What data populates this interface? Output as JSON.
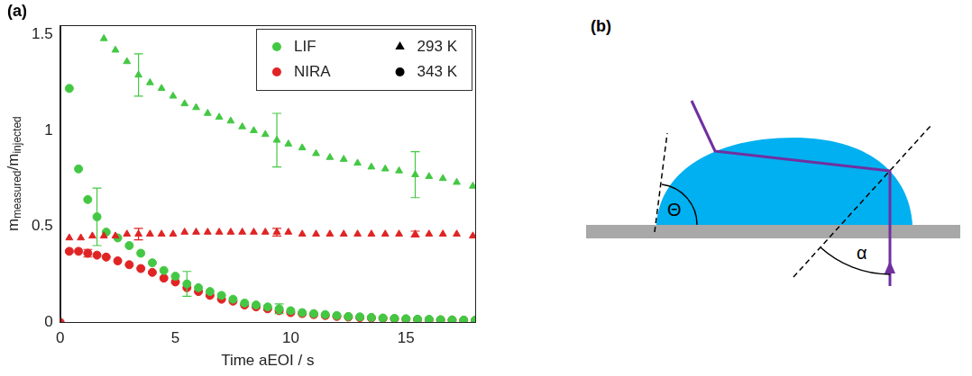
{
  "chart_data": {
    "type": "scatter",
    "panel": "(a)",
    "xlabel": "Time aEOI / s",
    "ylabel": [
      "m",
      "measured",
      "/m",
      "injected"
    ],
    "xlim": [
      0,
      18
    ],
    "xticks": [
      0,
      5,
      10,
      15
    ],
    "ylim": [
      0,
      1.55
    ],
    "yticks": [
      0,
      0.5,
      1,
      1.5
    ],
    "grid": false,
    "legend": "upper right",
    "series": [
      {
        "method": "LIF",
        "temperature": "293 K",
        "color": "#44c844",
        "marker": "triangle",
        "x": [
          1.9,
          2.4,
          2.9,
          3.4,
          3.9,
          4.4,
          4.9,
          5.4,
          5.9,
          6.4,
          6.9,
          7.4,
          7.9,
          8.4,
          8.9,
          9.4,
          9.9,
          10.5,
          11.1,
          11.7,
          12.3,
          12.9,
          13.5,
          14.1,
          14.7,
          15.4,
          16.0,
          16.6,
          17.2,
          17.9
        ],
        "values": [
          1.48,
          1.42,
          1.36,
          1.29,
          1.25,
          1.22,
          1.18,
          1.14,
          1.12,
          1.09,
          1.07,
          1.05,
          1.02,
          1.0,
          0.98,
          0.95,
          0.93,
          0.91,
          0.88,
          0.86,
          0.85,
          0.83,
          0.81,
          0.8,
          0.79,
          0.77,
          0.76,
          0.75,
          0.73,
          0.71
        ],
        "errors": [
          null,
          null,
          null,
          0.11,
          null,
          null,
          null,
          null,
          null,
          null,
          null,
          null,
          null,
          null,
          null,
          0.14,
          null,
          null,
          null,
          null,
          null,
          null,
          null,
          null,
          null,
          0.12,
          null,
          null,
          null,
          null
        ]
      },
      {
        "method": "NIRA",
        "temperature": "293 K",
        "color": "#e02424",
        "marker": "triangle",
        "x": [
          0.4,
          0.9,
          1.4,
          1.9,
          2.4,
          2.9,
          3.4,
          3.9,
          4.4,
          4.9,
          5.4,
          5.9,
          6.4,
          6.9,
          7.4,
          7.9,
          8.4,
          8.9,
          9.4,
          9.9,
          10.5,
          11.1,
          11.7,
          12.3,
          12.9,
          13.5,
          14.1,
          14.7,
          15.4,
          16.0,
          16.6,
          17.2,
          17.9
        ],
        "values": [
          0.44,
          0.44,
          0.45,
          0.45,
          0.45,
          0.46,
          0.46,
          0.46,
          0.46,
          0.46,
          0.47,
          0.47,
          0.47,
          0.47,
          0.47,
          0.47,
          0.47,
          0.47,
          0.47,
          0.47,
          0.46,
          0.46,
          0.46,
          0.46,
          0.46,
          0.46,
          0.46,
          0.46,
          0.46,
          0.46,
          0.46,
          0.46,
          0.45
        ],
        "errors": [
          null,
          null,
          null,
          null,
          null,
          null,
          0.03,
          null,
          null,
          null,
          null,
          null,
          null,
          null,
          null,
          null,
          null,
          null,
          0.02,
          null,
          null,
          null,
          null,
          null,
          null,
          null,
          null,
          null,
          0.015,
          null,
          null,
          null,
          null
        ]
      },
      {
        "method": "LIF",
        "temperature": "343 K",
        "color": "#44c844",
        "marker": "circle",
        "x": [
          0.4,
          0.8,
          1.2,
          1.6,
          2.0,
          2.5,
          3.0,
          3.5,
          4.0,
          4.5,
          5.0,
          5.5,
          6.0,
          6.5,
          7.0,
          7.5,
          8.0,
          8.5,
          9.0,
          9.5,
          10.0,
          10.5,
          11.0,
          11.5,
          12.0,
          12.5,
          13.0,
          13.5,
          14.0,
          14.5,
          15.0,
          15.5,
          16.0,
          16.5,
          17.0,
          17.5,
          18.0
        ],
        "values": [
          1.22,
          0.8,
          0.64,
          0.55,
          0.47,
          0.44,
          0.4,
          0.36,
          0.31,
          0.27,
          0.24,
          0.2,
          0.18,
          0.16,
          0.14,
          0.12,
          0.1,
          0.09,
          0.08,
          0.07,
          0.06,
          0.05,
          0.045,
          0.04,
          0.035,
          0.03,
          0.028,
          0.025,
          0.022,
          0.02,
          0.018,
          0.016,
          0.015,
          0.013,
          0.012,
          0.011,
          0.01
        ],
        "errors": [
          null,
          null,
          null,
          0.15,
          null,
          null,
          null,
          null,
          null,
          null,
          null,
          0.065,
          null,
          null,
          null,
          null,
          null,
          null,
          null,
          0.025,
          null,
          null,
          null,
          null,
          null,
          null,
          null,
          null,
          null,
          null,
          null,
          null,
          null,
          null,
          null,
          null,
          null
        ]
      },
      {
        "method": "NIRA",
        "temperature": "343 K",
        "color": "#e02424",
        "marker": "circle",
        "x": [
          0,
          0.4,
          0.8,
          1.2,
          1.6,
          2.0,
          2.5,
          3.0,
          3.5,
          4.0,
          4.5,
          5.0,
          5.5,
          6.0,
          6.5,
          7.0,
          7.5,
          8.0,
          8.5,
          9.0,
          9.5,
          10.0,
          10.5,
          11.0,
          11.5,
          12.0,
          12.5,
          13.0,
          13.5,
          14.0,
          14.5,
          15.0,
          15.5,
          16.0,
          16.5,
          17.0,
          17.5,
          18.0
        ],
        "values": [
          0,
          0.37,
          0.37,
          0.36,
          0.35,
          0.34,
          0.32,
          0.3,
          0.28,
          0.26,
          0.23,
          0.21,
          0.18,
          0.16,
          0.14,
          0.12,
          0.11,
          0.09,
          0.08,
          0.07,
          0.06,
          0.05,
          0.045,
          0.04,
          0.035,
          0.03,
          0.027,
          0.024,
          0.022,
          0.02,
          0.018,
          0.016,
          0.014,
          0.013,
          0.012,
          0.011,
          0.01,
          0.01
        ],
        "errors": [
          null,
          null,
          null,
          0.02,
          null,
          null,
          null,
          null,
          null,
          null,
          null,
          null,
          null,
          null,
          null,
          null,
          null,
          null,
          null,
          null,
          null,
          null,
          null,
          null,
          null,
          null,
          null,
          null,
          null,
          null,
          null,
          null,
          null,
          null,
          null,
          null,
          null,
          null
        ]
      }
    ]
  },
  "panel_b": {
    "letter": "(b)",
    "contact_angle_label": "Θ",
    "incidence_angle_label": "α"
  }
}
